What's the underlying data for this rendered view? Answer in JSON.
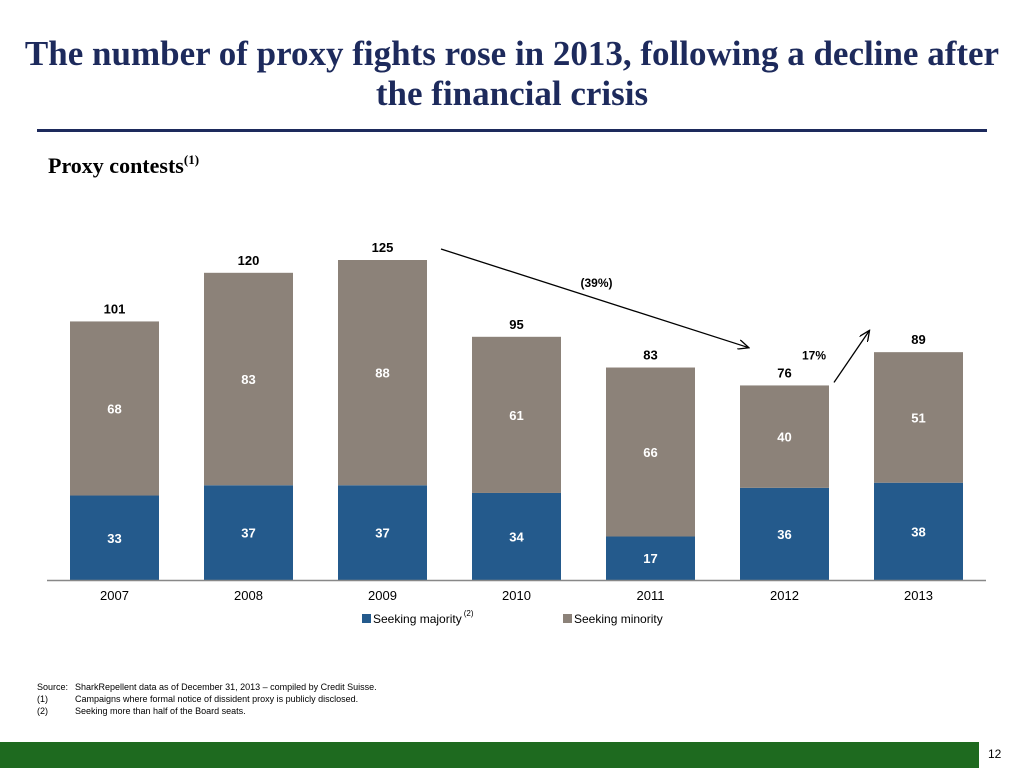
{
  "title": "The number of proxy fights rose in 2013, following a decline after the financial crisis",
  "subtitle": "Proxy contests",
  "subtitle_footnote": "(1)",
  "chart_data": {
    "type": "bar",
    "stacked": true,
    "categories": [
      "2007",
      "2008",
      "2009",
      "2010",
      "2011",
      "2012",
      "2013"
    ],
    "series": [
      {
        "name": "Seeking majority",
        "legend_footnote": "(2)",
        "color": "#245a8c",
        "values": [
          33,
          37,
          37,
          34,
          17,
          36,
          38
        ]
      },
      {
        "name": "Seeking minority",
        "color": "#8c8279",
        "values": [
          68,
          83,
          88,
          61,
          66,
          40,
          51
        ]
      }
    ],
    "totals": [
      101,
      120,
      125,
      95,
      83,
      76,
      89
    ],
    "annotations": [
      {
        "text": "(39%)",
        "from": "2009",
        "to": "2012"
      },
      {
        "text": "17%",
        "from": "2012",
        "to": "2013"
      }
    ],
    "ylim": [
      0,
      125
    ],
    "grid": false,
    "legend_position": "bottom"
  },
  "footnotes": [
    {
      "key": "Source:",
      "text": "SharkRepellent data as of December 31, 2013 – compiled by Credit Suisse."
    },
    {
      "key": "(1)",
      "text": "Campaigns where formal notice of dissident proxy is publicly disclosed."
    },
    {
      "key": "(2)",
      "text": "Seeking more than half of the Board seats."
    }
  ],
  "page_number": "12",
  "colors": {
    "title": "#1d2a5c",
    "footer_bar": "#1e6a1f",
    "majority": "#245a8c",
    "minority": "#8c8279"
  }
}
